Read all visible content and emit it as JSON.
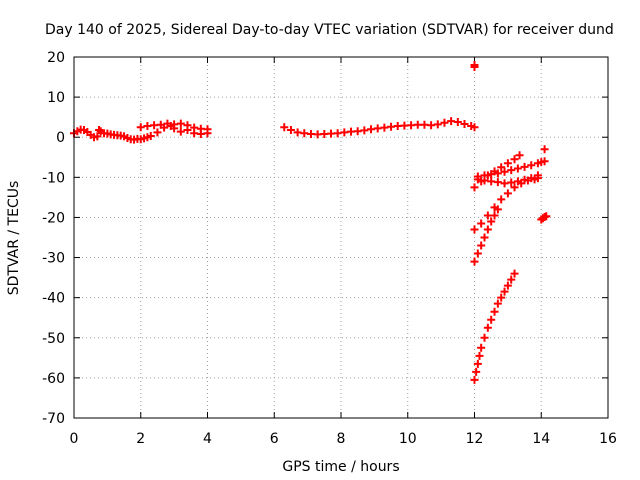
{
  "chart_data": {
    "type": "scatter",
    "title": "Day 140 of 2025, Sidereal Day-to-day VTEC variation (SDTVAR) for receiver dund",
    "xlabel": "GPS time / hours",
    "ylabel": "SDTVAR / TECUs",
    "xlim": [
      0,
      16
    ],
    "ylim": [
      -70,
      20
    ],
    "xticks": [
      0,
      2,
      4,
      6,
      8,
      10,
      12,
      14,
      16
    ],
    "yticks": [
      20,
      10,
      0,
      -10,
      -20,
      -30,
      -40,
      -50,
      -60,
      -70
    ],
    "grid": true,
    "legend": "none",
    "marker_color": "#ff0000",
    "series": [
      {
        "values": [
          [
            0.0,
            1.0
          ],
          [
            0.1,
            1.5
          ],
          [
            0.2,
            1.9
          ],
          [
            0.3,
            1.8
          ],
          [
            0.4,
            1.3
          ],
          [
            0.5,
            0.6
          ],
          [
            0.6,
            0.0
          ],
          [
            0.7,
            0.2
          ],
          [
            0.75,
            1.8
          ],
          [
            0.8,
            1.5
          ],
          [
            0.9,
            1.0
          ],
          [
            1.0,
            0.9
          ],
          [
            1.1,
            0.7
          ],
          [
            1.2,
            0.6
          ],
          [
            1.3,
            0.5
          ],
          [
            1.4,
            0.4
          ],
          [
            1.5,
            0.2
          ],
          [
            1.6,
            -0.2
          ],
          [
            1.7,
            -0.5
          ],
          [
            1.8,
            -0.6
          ],
          [
            1.9,
            -0.4
          ],
          [
            2.0,
            -0.5
          ],
          [
            2.1,
            -0.3
          ],
          [
            2.2,
            0.0
          ],
          [
            2.3,
            0.3
          ],
          [
            2.5,
            1.2
          ],
          [
            2.7,
            2.4
          ],
          [
            2.9,
            2.8
          ],
          [
            3.0,
            2.2
          ],
          [
            3.2,
            1.4
          ],
          [
            3.4,
            1.8
          ],
          [
            3.6,
            1.0
          ],
          [
            3.8,
            0.8
          ],
          [
            4.0,
            1.0
          ],
          [
            2.0,
            2.5
          ],
          [
            2.2,
            2.8
          ],
          [
            2.4,
            3.0
          ],
          [
            2.6,
            3.1
          ],
          [
            2.8,
            3.4
          ],
          [
            3.0,
            3.2
          ],
          [
            3.2,
            3.4
          ],
          [
            3.4,
            3.0
          ],
          [
            3.6,
            2.4
          ],
          [
            3.8,
            2.1
          ],
          [
            4.0,
            2.0
          ]
        ]
      },
      {
        "values": [
          [
            6.3,
            2.5
          ],
          [
            6.5,
            1.8
          ],
          [
            6.7,
            1.2
          ],
          [
            6.9,
            1.0
          ],
          [
            7.1,
            0.8
          ],
          [
            7.3,
            0.7
          ],
          [
            7.5,
            0.8
          ],
          [
            7.7,
            0.9
          ],
          [
            7.9,
            1.0
          ],
          [
            8.1,
            1.2
          ],
          [
            8.3,
            1.4
          ],
          [
            8.5,
            1.5
          ],
          [
            8.7,
            1.7
          ],
          [
            8.9,
            2.0
          ],
          [
            9.1,
            2.2
          ],
          [
            9.3,
            2.4
          ],
          [
            9.5,
            2.6
          ],
          [
            9.7,
            2.8
          ],
          [
            9.9,
            2.9
          ],
          [
            10.1,
            3.0
          ],
          [
            10.3,
            3.1
          ],
          [
            10.5,
            3.1
          ],
          [
            10.7,
            3.0
          ],
          [
            10.9,
            3.2
          ],
          [
            11.1,
            3.6
          ],
          [
            11.3,
            4.0
          ],
          [
            11.5,
            3.8
          ],
          [
            11.7,
            3.3
          ],
          [
            11.9,
            2.8
          ],
          [
            12.0,
            2.5
          ]
        ]
      },
      {
        "values": [
          [
            12.0,
            18.0
          ],
          [
            12.0,
            17.5
          ],
          [
            12.0,
            -60.5
          ],
          [
            12.05,
            -58.5
          ],
          [
            12.1,
            -56.5
          ],
          [
            12.15,
            -54.5
          ],
          [
            12.2,
            -52.5
          ],
          [
            12.3,
            -50.0
          ],
          [
            12.4,
            -47.5
          ],
          [
            12.5,
            -45.5
          ],
          [
            12.6,
            -43.5
          ],
          [
            12.7,
            -41.5
          ],
          [
            12.8,
            -40.0
          ],
          [
            12.9,
            -38.5
          ],
          [
            13.0,
            -37.0
          ],
          [
            13.1,
            -35.5
          ],
          [
            13.2,
            -34.0
          ],
          [
            12.0,
            -31.0
          ],
          [
            12.1,
            -29.0
          ],
          [
            12.2,
            -27.0
          ],
          [
            12.3,
            -25.0
          ],
          [
            12.4,
            -23.0
          ],
          [
            12.5,
            -21.0
          ],
          [
            12.6,
            -19.5
          ],
          [
            12.7,
            -18.0
          ],
          [
            12.0,
            -23.0
          ],
          [
            12.2,
            -21.5
          ],
          [
            12.4,
            -19.5
          ],
          [
            12.6,
            -17.5
          ],
          [
            12.8,
            -15.5
          ],
          [
            13.0,
            -14.0
          ],
          [
            13.2,
            -12.5
          ],
          [
            13.4,
            -11.5
          ],
          [
            13.6,
            -10.8
          ],
          [
            13.8,
            -10.5
          ],
          [
            13.9,
            -10.2
          ],
          [
            12.0,
            -12.5
          ],
          [
            12.2,
            -11.0
          ],
          [
            12.4,
            -9.5
          ],
          [
            12.6,
            -8.5
          ],
          [
            12.8,
            -7.5
          ],
          [
            13.0,
            -6.5
          ],
          [
            13.2,
            -5.5
          ],
          [
            13.35,
            -4.5
          ],
          [
            12.1,
            -9.8
          ],
          [
            12.3,
            -9.5
          ],
          [
            12.5,
            -9.2
          ],
          [
            12.7,
            -9.0
          ],
          [
            12.9,
            -8.6
          ],
          [
            13.1,
            -8.2
          ],
          [
            13.3,
            -7.8
          ],
          [
            13.5,
            -7.4
          ],
          [
            13.7,
            -7.0
          ],
          [
            13.9,
            -6.5
          ],
          [
            14.0,
            -6.2
          ],
          [
            14.1,
            -6.0
          ],
          [
            12.1,
            -10.5
          ],
          [
            12.3,
            -10.8
          ],
          [
            12.5,
            -11.0
          ],
          [
            12.7,
            -11.2
          ],
          [
            12.9,
            -11.5
          ],
          [
            13.1,
            -11.3
          ],
          [
            13.3,
            -11.0
          ],
          [
            13.5,
            -10.6
          ],
          [
            13.7,
            -10.2
          ],
          [
            13.9,
            -9.5
          ],
          [
            14.1,
            -3.0
          ],
          [
            14.0,
            -20.5
          ],
          [
            14.05,
            -20.2
          ],
          [
            14.1,
            -19.9
          ],
          [
            14.15,
            -19.7
          ]
        ]
      }
    ]
  }
}
